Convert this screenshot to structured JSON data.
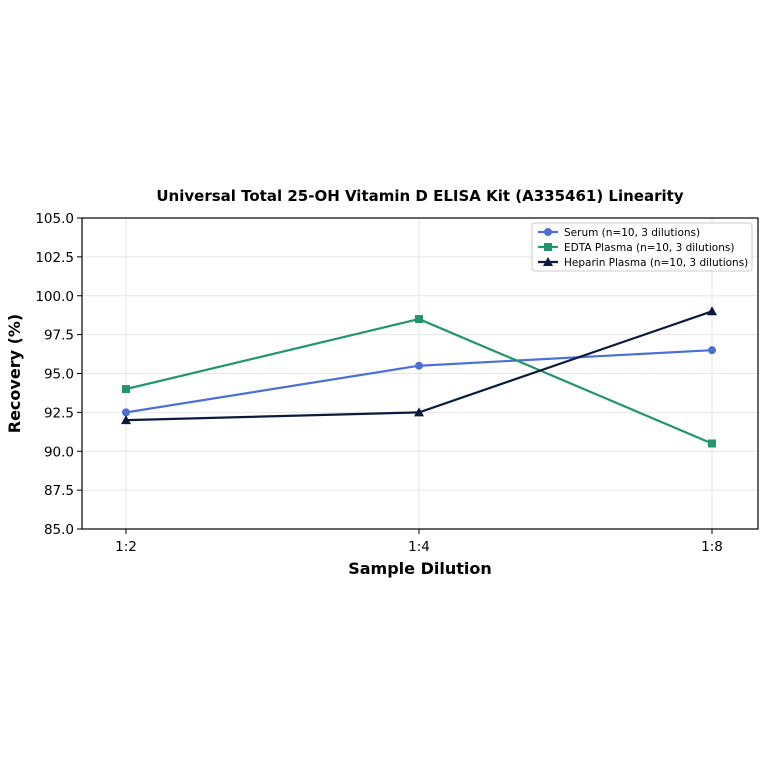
{
  "chart_data": {
    "type": "line",
    "title": "Universal Total 25-OH Vitamin D ELISA Kit (A335461) Linearity",
    "xlabel": "Sample Dilution",
    "ylabel": "Recovery (%)",
    "categories": [
      "1:2",
      "1:4",
      "1:8"
    ],
    "ylim": [
      85.0,
      105.0
    ],
    "yticks": [
      "85.0",
      "87.5",
      "90.0",
      "92.5",
      "95.0",
      "97.5",
      "100.0",
      "102.5",
      "105.0"
    ],
    "grid": true,
    "legend_position": "top-right",
    "series": [
      {
        "name": "Serum (n=10, 3 dilutions)",
        "values": [
          92.5,
          95.5,
          96.5
        ],
        "color": "#4c6fd6",
        "marker": "circle"
      },
      {
        "name": "EDTA Plasma (n=10, 3 dilutions)",
        "values": [
          94.0,
          98.5,
          90.5
        ],
        "color": "#22946e",
        "marker": "square"
      },
      {
        "name": "Heparin Plasma (n=10, 3 dilutions)",
        "values": [
          92.0,
          92.5,
          99.0
        ],
        "color": "#0b1a3d",
        "marker": "triangle"
      }
    ]
  }
}
